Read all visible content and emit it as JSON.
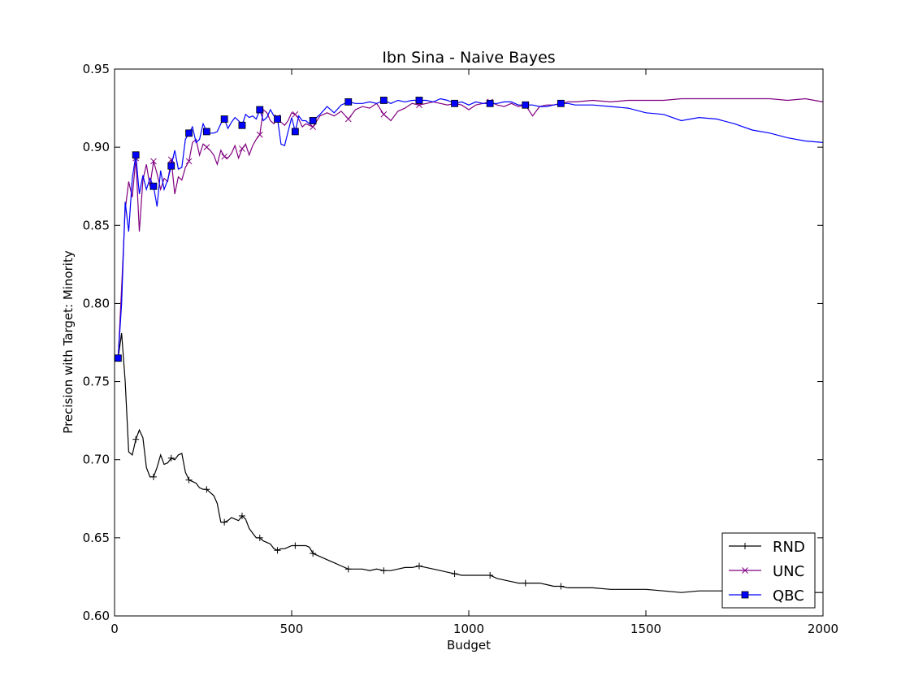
{
  "chart_data": {
    "type": "line",
    "title": "Ibn Sina - Naive Bayes",
    "xlabel": "Budget",
    "ylabel": "Precision with Target: Minority",
    "xlim": [
      0,
      2000
    ],
    "ylim": [
      0.6,
      0.95
    ],
    "xticks": [
      0,
      500,
      1000,
      1500,
      2000
    ],
    "yticks": [
      0.6,
      0.65,
      0.7,
      0.75,
      0.8,
      0.85,
      0.9,
      0.95
    ],
    "grid": false,
    "legend_position": "lower-right",
    "series": [
      {
        "name": "RND",
        "color": "#000000",
        "marker": "plus",
        "x": [
          10,
          20,
          30,
          40,
          50,
          60,
          70,
          80,
          90,
          100,
          110,
          120,
          130,
          140,
          150,
          160,
          170,
          180,
          190,
          200,
          210,
          220,
          230,
          240,
          250,
          260,
          270,
          280,
          290,
          300,
          310,
          320,
          330,
          340,
          350,
          360,
          370,
          380,
          390,
          400,
          410,
          420,
          430,
          440,
          450,
          460,
          470,
          480,
          490,
          500,
          510,
          520,
          530,
          540,
          550,
          560,
          580,
          600,
          620,
          640,
          660,
          680,
          700,
          720,
          740,
          760,
          780,
          800,
          820,
          840,
          860,
          880,
          900,
          920,
          940,
          960,
          980,
          1000,
          1020,
          1040,
          1060,
          1080,
          1100,
          1120,
          1140,
          1160,
          1180,
          1200,
          1220,
          1240,
          1260,
          1280,
          1300,
          1350,
          1400,
          1450,
          1500,
          1550,
          1600,
          1650,
          1700,
          1750,
          1800,
          1850,
          1900,
          1950,
          2000
        ],
        "values": [
          0.765,
          0.781,
          0.75,
          0.705,
          0.703,
          0.713,
          0.719,
          0.714,
          0.695,
          0.689,
          0.689,
          0.695,
          0.703,
          0.697,
          0.698,
          0.701,
          0.7,
          0.703,
          0.704,
          0.692,
          0.687,
          0.686,
          0.685,
          0.682,
          0.681,
          0.681,
          0.679,
          0.677,
          0.672,
          0.66,
          0.66,
          0.661,
          0.663,
          0.662,
          0.661,
          0.664,
          0.662,
          0.656,
          0.653,
          0.65,
          0.65,
          0.648,
          0.647,
          0.646,
          0.643,
          0.642,
          0.643,
          0.643,
          0.644,
          0.645,
          0.645,
          0.645,
          0.645,
          0.645,
          0.644,
          0.64,
          0.638,
          0.636,
          0.634,
          0.632,
          0.63,
          0.63,
          0.63,
          0.629,
          0.63,
          0.629,
          0.629,
          0.63,
          0.631,
          0.631,
          0.632,
          0.631,
          0.63,
          0.629,
          0.628,
          0.627,
          0.626,
          0.626,
          0.626,
          0.626,
          0.626,
          0.624,
          0.623,
          0.622,
          0.621,
          0.621,
          0.621,
          0.621,
          0.62,
          0.619,
          0.619,
          0.618,
          0.618,
          0.618,
          0.617,
          0.617,
          0.617,
          0.616,
          0.615,
          0.616,
          0.616,
          0.616,
          0.616,
          0.615,
          0.615,
          0.615,
          0.615
        ]
      },
      {
        "name": "UNC",
        "color": "#800080",
        "marker": "x",
        "x": [
          10,
          20,
          30,
          40,
          50,
          60,
          70,
          80,
          90,
          100,
          110,
          120,
          130,
          140,
          150,
          160,
          170,
          180,
          190,
          200,
          210,
          220,
          230,
          240,
          250,
          260,
          270,
          280,
          290,
          300,
          310,
          320,
          330,
          340,
          350,
          360,
          370,
          380,
          390,
          400,
          410,
          420,
          430,
          440,
          450,
          460,
          470,
          480,
          490,
          500,
          510,
          520,
          530,
          540,
          550,
          560,
          580,
          600,
          620,
          640,
          660,
          680,
          700,
          720,
          740,
          760,
          780,
          800,
          820,
          840,
          860,
          880,
          900,
          920,
          940,
          960,
          980,
          1000,
          1020,
          1040,
          1060,
          1080,
          1100,
          1120,
          1140,
          1160,
          1180,
          1200,
          1220,
          1240,
          1260,
          1280,
          1300,
          1350,
          1400,
          1450,
          1500,
          1550,
          1600,
          1650,
          1700,
          1750,
          1800,
          1850,
          1900,
          1950,
          2000
        ],
        "values": [
          0.765,
          0.81,
          0.86,
          0.878,
          0.868,
          0.893,
          0.846,
          0.879,
          0.889,
          0.875,
          0.891,
          0.883,
          0.873,
          0.88,
          0.878,
          0.892,
          0.87,
          0.881,
          0.879,
          0.887,
          0.891,
          0.903,
          0.905,
          0.895,
          0.902,
          0.9,
          0.898,
          0.895,
          0.889,
          0.898,
          0.894,
          0.893,
          0.896,
          0.901,
          0.893,
          0.899,
          0.902,
          0.895,
          0.901,
          0.905,
          0.908,
          0.924,
          0.922,
          0.917,
          0.915,
          0.919,
          0.916,
          0.914,
          0.917,
          0.922,
          0.921,
          0.918,
          0.913,
          0.915,
          0.914,
          0.913,
          0.92,
          0.922,
          0.92,
          0.923,
          0.918,
          0.924,
          0.926,
          0.925,
          0.928,
          0.921,
          0.917,
          0.923,
          0.925,
          0.928,
          0.927,
          0.928,
          0.929,
          0.928,
          0.927,
          0.928,
          0.927,
          0.924,
          0.927,
          0.928,
          0.929,
          0.927,
          0.926,
          0.928,
          0.926,
          0.927,
          0.92,
          0.926,
          0.927,
          0.927,
          0.928,
          0.929,
          0.929,
          0.93,
          0.929,
          0.93,
          0.93,
          0.93,
          0.931,
          0.931,
          0.931,
          0.931,
          0.931,
          0.931,
          0.93,
          0.931,
          0.929
        ]
      },
      {
        "name": "QBC",
        "color": "#0000ff",
        "marker": "square",
        "x": [
          10,
          20,
          30,
          40,
          50,
          60,
          70,
          80,
          90,
          100,
          110,
          120,
          130,
          140,
          150,
          160,
          170,
          180,
          190,
          200,
          210,
          220,
          230,
          240,
          250,
          260,
          270,
          280,
          290,
          300,
          310,
          320,
          330,
          340,
          350,
          360,
          370,
          380,
          390,
          400,
          410,
          420,
          430,
          440,
          450,
          460,
          470,
          480,
          490,
          500,
          510,
          520,
          530,
          540,
          550,
          560,
          580,
          600,
          620,
          640,
          660,
          680,
          700,
          720,
          740,
          760,
          780,
          800,
          820,
          840,
          860,
          880,
          900,
          920,
          940,
          960,
          980,
          1000,
          1020,
          1040,
          1060,
          1080,
          1100,
          1120,
          1140,
          1160,
          1180,
          1200,
          1220,
          1240,
          1260,
          1280,
          1300,
          1350,
          1400,
          1450,
          1500,
          1550,
          1600,
          1650,
          1700,
          1750,
          1800,
          1850,
          1900,
          1950,
          2000
        ],
        "values": [
          0.765,
          0.8,
          0.865,
          0.846,
          0.88,
          0.895,
          0.87,
          0.882,
          0.873,
          0.88,
          0.875,
          0.862,
          0.885,
          0.873,
          0.879,
          0.888,
          0.898,
          0.886,
          0.887,
          0.905,
          0.909,
          0.913,
          0.903,
          0.905,
          0.915,
          0.91,
          0.909,
          0.909,
          0.91,
          0.915,
          0.918,
          0.912,
          0.916,
          0.919,
          0.917,
          0.914,
          0.921,
          0.919,
          0.92,
          0.918,
          0.924,
          0.917,
          0.919,
          0.924,
          0.92,
          0.918,
          0.902,
          0.901,
          0.91,
          0.919,
          0.91,
          0.92,
          0.917,
          0.917,
          0.915,
          0.917,
          0.921,
          0.926,
          0.922,
          0.927,
          0.929,
          0.928,
          0.928,
          0.929,
          0.928,
          0.93,
          0.928,
          0.93,
          0.929,
          0.93,
          0.93,
          0.93,
          0.929,
          0.931,
          0.93,
          0.928,
          0.929,
          0.927,
          0.929,
          0.928,
          0.928,
          0.928,
          0.929,
          0.929,
          0.927,
          0.927,
          0.927,
          0.926,
          0.926,
          0.927,
          0.928,
          0.928,
          0.927,
          0.927,
          0.926,
          0.925,
          0.922,
          0.921,
          0.917,
          0.919,
          0.918,
          0.915,
          0.911,
          0.909,
          0.906,
          0.904,
          0.903
        ]
      }
    ]
  }
}
